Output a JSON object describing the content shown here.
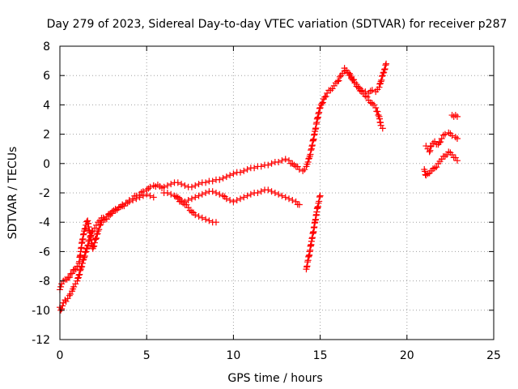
{
  "chart_data": {
    "type": "scatter",
    "title": "Day 279 of 2023, Sidereal Day-to-day VTEC variation (SDTVAR) for receiver p287",
    "xlabel": "GPS time / hours",
    "ylabel": "SDTVAR / TECUs",
    "xlim": [
      0,
      25
    ],
    "ylim": [
      -12,
      8
    ],
    "xticks": [
      0,
      5,
      10,
      15,
      20,
      25
    ],
    "yticks": [
      -12,
      -10,
      -8,
      -6,
      -4,
      -2,
      0,
      2,
      4,
      6,
      8
    ],
    "grid": true,
    "legend": "none",
    "marker": "plus",
    "marker_color": "#ff0000",
    "series": [
      {
        "x": [
          0.0,
          0.05,
          0.1,
          0.15,
          0.2,
          0.3,
          0.35,
          0.45,
          0.55,
          0.6,
          0.7,
          0.8,
          0.9,
          1.0,
          1.1,
          1.2,
          1.3,
          1.4,
          1.5,
          1.6,
          1.7,
          1.8,
          1.9,
          2.0,
          2.1,
          2.2,
          2.3,
          2.5,
          2.7,
          2.9,
          3.0,
          3.2,
          3.4,
          3.6,
          3.8,
          4.0,
          4.2,
          4.4,
          4.6,
          4.8,
          5.0,
          5.2,
          5.4,
          6.0,
          6.2,
          6.4,
          6.6,
          6.8,
          7.0,
          7.2,
          7.4,
          7.6,
          7.8,
          8.0,
          8.2,
          8.4,
          8.6,
          8.8,
          9.0,
          9.2,
          9.4,
          9.6,
          9.8,
          10.0,
          10.2,
          10.4,
          10.6,
          10.8,
          11.0,
          11.2,
          11.4,
          11.6,
          11.8,
          12.0,
          12.2,
          12.4,
          12.6,
          12.8,
          13.0,
          13.2,
          13.4,
          13.6,
          13.8,
          14.0,
          14.1,
          14.2,
          14.3,
          14.4,
          14.5,
          14.6,
          14.7,
          14.8,
          14.9,
          15.0,
          15.1,
          15.2,
          15.4,
          15.6,
          15.8,
          16.0,
          16.2,
          16.4,
          16.6,
          16.8,
          17.0,
          17.2,
          17.4,
          17.6,
          17.8,
          18.0,
          18.2,
          18.4,
          18.5,
          18.6,
          18.7,
          18.8
        ],
        "y": [
          -9.8,
          -10.0,
          -9.9,
          -9.7,
          -9.5,
          -9.3,
          -9.4,
          -9.2,
          -9.0,
          -8.9,
          -8.7,
          -8.4,
          -8.2,
          -8.0,
          -7.6,
          -7.2,
          -6.8,
          -6.4,
          -6.0,
          -5.6,
          -5.2,
          -4.9,
          -4.6,
          -4.4,
          -4.2,
          -4.0,
          -3.9,
          -3.7,
          -3.6,
          -3.4,
          -3.3,
          -3.1,
          -3.0,
          -2.8,
          -2.7,
          -2.5,
          -2.4,
          -2.2,
          -2.1,
          -1.9,
          -1.8,
          -1.6,
          -1.5,
          -1.6,
          -1.5,
          -1.4,
          -1.3,
          -1.3,
          -1.4,
          -1.5,
          -1.6,
          -1.6,
          -1.5,
          -1.4,
          -1.3,
          -1.3,
          -1.2,
          -1.2,
          -1.1,
          -1.1,
          -1.0,
          -0.9,
          -0.8,
          -0.7,
          -0.6,
          -0.6,
          -0.5,
          -0.4,
          -0.3,
          -0.3,
          -0.2,
          -0.2,
          -0.1,
          -0.1,
          0.0,
          0.1,
          0.1,
          0.2,
          0.3,
          0.2,
          0.0,
          -0.2,
          -0.4,
          -0.5,
          -0.4,
          -0.2,
          0.1,
          0.5,
          1.0,
          1.6,
          2.2,
          2.8,
          3.4,
          3.8,
          4.1,
          4.4,
          4.8,
          5.0,
          5.3,
          5.6,
          6.0,
          6.3,
          6.2,
          5.8,
          5.5,
          5.2,
          5.0,
          4.9,
          4.8,
          5.0,
          4.9,
          5.2,
          5.6,
          6.0,
          6.4,
          6.8
        ]
      },
      {
        "x": [
          0.0,
          0.05,
          0.1,
          0.2,
          0.3,
          0.4,
          1.0,
          1.1,
          1.2,
          1.3,
          1.4,
          1.5,
          1.6,
          1.7,
          1.8,
          1.9,
          2.0,
          2.2,
          2.4,
          2.6,
          2.8,
          3.0,
          3.2,
          3.4,
          3.6,
          3.8,
          4.0,
          4.2,
          4.4,
          4.6,
          4.8,
          5.0,
          5.2,
          5.4
        ],
        "y": [
          -8.6,
          -8.4,
          -8.2,
          -8.0,
          -7.9,
          -7.9,
          -7.0,
          -6.8,
          -6.0,
          -5.2,
          -4.6,
          -4.2,
          -3.9,
          -4.6,
          -5.2,
          -5.8,
          -5.4,
          -4.6,
          -4.0,
          -3.8,
          -3.6,
          -3.4,
          -3.2,
          -3.0,
          -2.9,
          -2.7,
          -2.6,
          -2.5,
          -2.4,
          -2.3,
          -2.2,
          -2.1,
          -2.2,
          -2.3
        ]
      },
      {
        "x": [
          6.0,
          6.2,
          6.4,
          6.6,
          6.8,
          7.0,
          7.2,
          7.4,
          7.6,
          7.8,
          8.0,
          8.2,
          8.4,
          8.6,
          8.8,
          9.0
        ],
        "y": [
          -2.0,
          -2.0,
          -2.1,
          -2.2,
          -2.4,
          -2.6,
          -2.8,
          -3.0,
          -3.3,
          -3.5,
          -3.6,
          -3.7,
          -3.8,
          -3.9,
          -4.0,
          -4.0
        ]
      },
      {
        "x": [
          6.8,
          7.0,
          7.2,
          7.4,
          7.6,
          7.8,
          8.0,
          8.2,
          8.4,
          8.6,
          8.8,
          9.0,
          9.2,
          9.4,
          9.6,
          9.8,
          10.0,
          10.2,
          10.4,
          10.6,
          10.8,
          11.0,
          11.2,
          11.4,
          11.6,
          11.8,
          12.0,
          12.2,
          12.4,
          12.6,
          12.8,
          13.0,
          13.2,
          13.4,
          13.6,
          13.8
        ],
        "y": [
          -2.3,
          -2.5,
          -2.6,
          -2.5,
          -2.4,
          -2.3,
          -2.2,
          -2.1,
          -2.0,
          -1.9,
          -1.9,
          -2.0,
          -2.1,
          -2.2,
          -2.4,
          -2.5,
          -2.6,
          -2.5,
          -2.4,
          -2.3,
          -2.2,
          -2.1,
          -2.0,
          -2.0,
          -1.9,
          -1.8,
          -1.8,
          -1.9,
          -2.0,
          -2.1,
          -2.2,
          -2.3,
          -2.4,
          -2.5,
          -2.6,
          -2.8
        ]
      },
      {
        "x": [
          14.2,
          14.3,
          14.4,
          14.5,
          14.6,
          14.7,
          14.8,
          14.9,
          15.0
        ],
        "y": [
          -7.2,
          -6.6,
          -6.0,
          -5.3,
          -4.7,
          -4.0,
          -3.3,
          -2.7,
          -2.2
        ]
      },
      {
        "x": [
          16.4,
          16.6,
          16.8,
          17.0,
          17.2,
          17.4,
          17.6,
          17.8,
          18.0,
          18.2,
          18.4,
          18.5,
          18.6
        ],
        "y": [
          6.5,
          6.2,
          5.9,
          5.5,
          5.2,
          4.9,
          4.6,
          4.3,
          4.1,
          3.8,
          3.2,
          2.6,
          2.4
        ]
      },
      {
        "x": [
          21.0,
          21.1,
          21.2,
          21.4,
          21.6,
          21.8,
          22.0,
          22.2,
          22.4,
          22.6,
          22.8,
          22.9
        ],
        "y": [
          -0.4,
          -0.8,
          -0.7,
          -0.5,
          -0.3,
          0.0,
          0.3,
          0.5,
          0.8,
          0.6,
          0.4,
          0.2
        ]
      },
      {
        "x": [
          21.1,
          21.2,
          21.3,
          21.4,
          21.6,
          21.8,
          22.0,
          22.2,
          22.4,
          22.6,
          22.8,
          22.9
        ],
        "y": [
          1.2,
          1.0,
          0.8,
          1.2,
          1.5,
          1.3,
          1.7,
          2.0,
          2.1,
          1.9,
          1.8,
          1.7
        ]
      },
      {
        "x": [
          22.6,
          22.7,
          22.8,
          22.9
        ],
        "y": [
          3.3,
          3.2,
          3.3,
          3.2
        ]
      }
    ]
  }
}
